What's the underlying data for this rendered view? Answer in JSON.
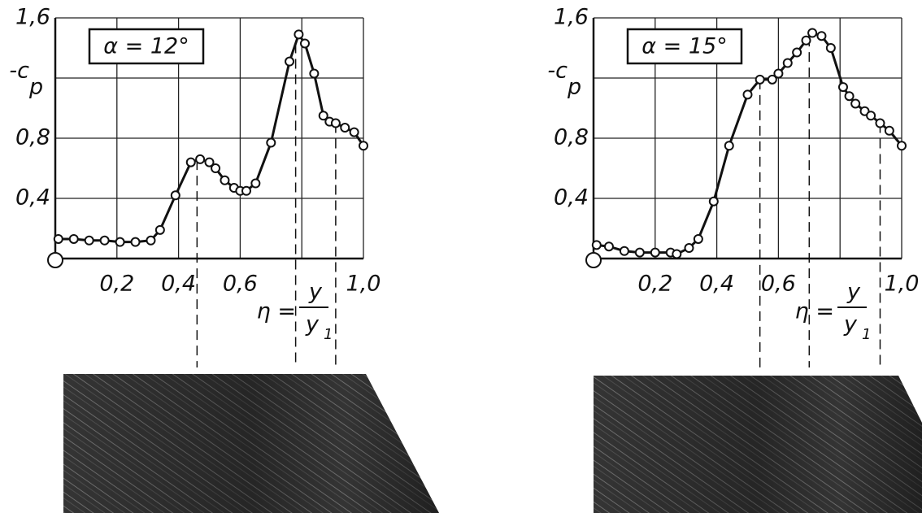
{
  "chart_data": [
    {
      "type": "line",
      "title": "α = 12°",
      "y_label": {
        "main": "-c",
        "sub": "p"
      },
      "x_label": {
        "prefix": "η =",
        "num": "y",
        "den": "y",
        "den_sub": "1"
      },
      "xlim": [
        0,
        1.0
      ],
      "ylim": [
        0,
        1.6
      ],
      "xticks": [
        {
          "value": 0.2,
          "label": "0,2"
        },
        {
          "value": 0.4,
          "label": "0,4"
        },
        {
          "value": 0.6,
          "label": "0,6"
        },
        {
          "value": 1.0,
          "label": "1,0"
        }
      ],
      "yticks": [
        {
          "value": 0.4,
          "label": "0,4"
        },
        {
          "value": 0.8,
          "label": "0,8"
        },
        {
          "value": 1.6,
          "label": "1,6"
        }
      ],
      "xgrid": [
        0.2,
        0.4,
        0.6,
        0.8,
        1.0
      ],
      "ygrid": [
        0.4,
        0.8,
        1.2,
        1.6
      ],
      "reference_lines": [
        0.46,
        0.78,
        0.91
      ],
      "series": [
        {
          "color": "#111",
          "x": [
            0.01,
            0.06,
            0.11,
            0.16,
            0.21,
            0.26,
            0.31,
            0.34,
            0.39,
            0.44,
            0.47,
            0.5,
            0.52,
            0.55,
            0.58,
            0.6,
            0.62,
            0.65,
            0.7,
            0.76,
            0.79,
            0.81,
            0.84,
            0.87,
            0.89,
            0.91,
            0.94,
            0.97,
            1.0
          ],
          "values": [
            0.13,
            0.13,
            0.12,
            0.12,
            0.11,
            0.11,
            0.12,
            0.19,
            0.42,
            0.64,
            0.66,
            0.64,
            0.6,
            0.52,
            0.47,
            0.45,
            0.45,
            0.5,
            0.77,
            1.31,
            1.49,
            1.43,
            1.23,
            0.95,
            0.91,
            0.9,
            0.87,
            0.84,
            0.75
          ]
        }
      ]
    },
    {
      "type": "line",
      "title": "α = 15°",
      "y_label": {
        "main": "-c",
        "sub": "p"
      },
      "x_label": {
        "prefix": "η =",
        "num": "y",
        "den": "y",
        "den_sub": "1"
      },
      "xlim": [
        0,
        1.0
      ],
      "ylim": [
        0,
        1.6
      ],
      "xticks": [
        {
          "value": 0.2,
          "label": "0,2"
        },
        {
          "value": 0.4,
          "label": "0,4"
        },
        {
          "value": 0.6,
          "label": "0,6"
        },
        {
          "value": 1.0,
          "label": "1,0"
        }
      ],
      "yticks": [
        {
          "value": 0.4,
          "label": "0,4"
        },
        {
          "value": 0.8,
          "label": "0,8"
        },
        {
          "value": 1.6,
          "label": "1,6"
        }
      ],
      "xgrid": [
        0.2,
        0.4,
        0.6,
        0.8,
        1.0
      ],
      "ygrid": [
        0.4,
        0.8,
        1.2,
        1.6
      ],
      "reference_lines": [
        0.54,
        0.7,
        0.93
      ],
      "series": [
        {
          "color": "#111",
          "x": [
            0.01,
            0.05,
            0.1,
            0.15,
            0.2,
            0.25,
            0.27,
            0.31,
            0.34,
            0.39,
            0.44,
            0.5,
            0.54,
            0.58,
            0.6,
            0.63,
            0.66,
            0.69,
            0.71,
            0.74,
            0.77,
            0.81,
            0.83,
            0.85,
            0.88,
            0.9,
            0.93,
            0.96,
            1.0
          ],
          "values": [
            0.09,
            0.08,
            0.05,
            0.04,
            0.04,
            0.04,
            0.03,
            0.07,
            0.13,
            0.38,
            0.75,
            1.09,
            1.19,
            1.19,
            1.23,
            1.3,
            1.37,
            1.45,
            1.5,
            1.48,
            1.4,
            1.14,
            1.08,
            1.03,
            0.98,
            0.95,
            0.9,
            0.85,
            0.75
          ]
        }
      ]
    }
  ]
}
